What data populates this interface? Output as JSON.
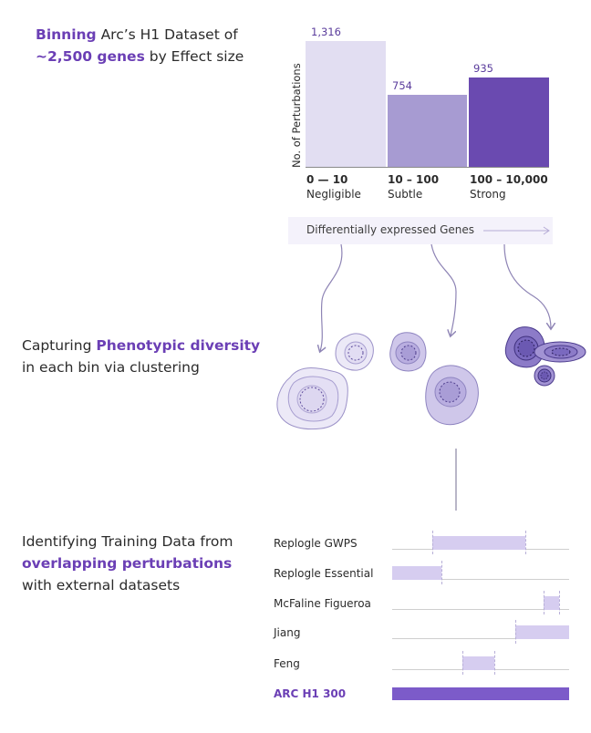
{
  "section1": {
    "w1": "Binning",
    "w2": " Arc’s H1 Dataset of",
    "w3": "~2,500 genes",
    "w4": " by Effect size"
  },
  "section2": {
    "w1": "Capturing ",
    "w2": "Phenotypic diversity",
    "w3": "in each bin via clustering"
  },
  "section3": {
    "w1": "Identifying Training Data from",
    "w2": "overlapping perturbations",
    "w3": "with external datasets"
  },
  "colors": {
    "negligible": "#e2def2",
    "subtle": "#a79bd2",
    "strong": "#6a4ab0",
    "accent": "#6b3fb5",
    "overlap": "#d6cdf0",
    "arc": "#7c5bc9"
  },
  "chart_data": {
    "type": "bar",
    "ylabel": "No. of Perturbations",
    "categories": [
      {
        "range": "0 — 10",
        "name": "Negligible"
      },
      {
        "range": "10 – 100",
        "name": "Subtle"
      },
      {
        "range": "100 – 10,000",
        "name": "Strong"
      }
    ],
    "values": [
      1316,
      754,
      935
    ],
    "value_labels": [
      "1,316",
      "754",
      "935"
    ],
    "xlabel": "Differentially expressed Genes"
  },
  "datasets": [
    {
      "name": "Replogle GWPS",
      "overlap": [
        0.228,
        0.755
      ]
    },
    {
      "name": "Replogle Essential",
      "overlap": [
        0.0,
        0.28
      ]
    },
    {
      "name": "McFaline Figueroa",
      "overlap": [
        0.855,
        0.945
      ]
    },
    {
      "name": "Jiang",
      "overlap": [
        0.695,
        1.0
      ]
    },
    {
      "name": "Feng",
      "overlap": [
        0.397,
        0.575
      ]
    },
    {
      "name": "ARC H1 300",
      "overlap": [
        0.0,
        1.0
      ]
    }
  ]
}
